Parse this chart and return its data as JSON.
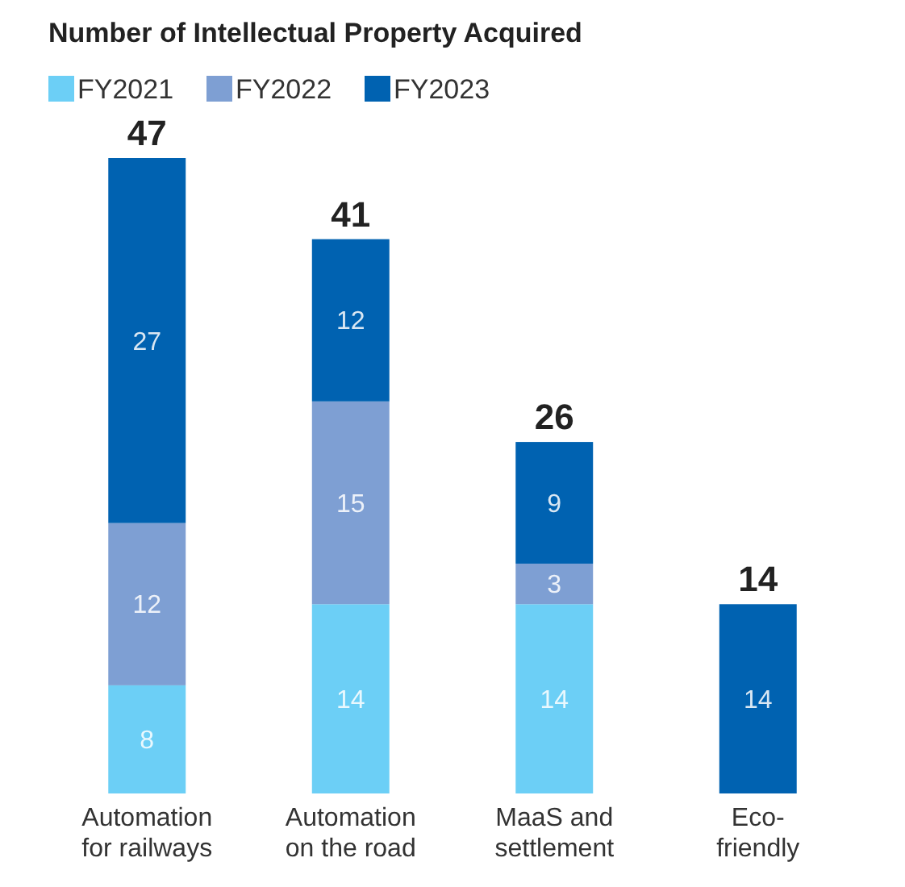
{
  "chart_data": {
    "type": "bar",
    "title": "Number of Intellectual Property Acquired",
    "stacked": true,
    "data_labels": true,
    "legend": "top left",
    "categories": [
      "Automation for railways",
      "Automation on the road",
      "MaaS and settlement",
      "Eco-friendly"
    ],
    "series": [
      {
        "name": "FY2021",
        "color": "#6ccff6",
        "values": [
          8,
          14,
          14,
          null
        ]
      },
      {
        "name": "FY2022",
        "color": "#7e9fd3",
        "values": [
          12,
          15,
          3,
          null
        ]
      },
      {
        "name": "FY2023",
        "color": "#0062b1",
        "values": [
          27,
          12,
          9,
          14
        ]
      }
    ],
    "totals": [
      "47",
      "41",
      "26",
      "14"
    ]
  }
}
